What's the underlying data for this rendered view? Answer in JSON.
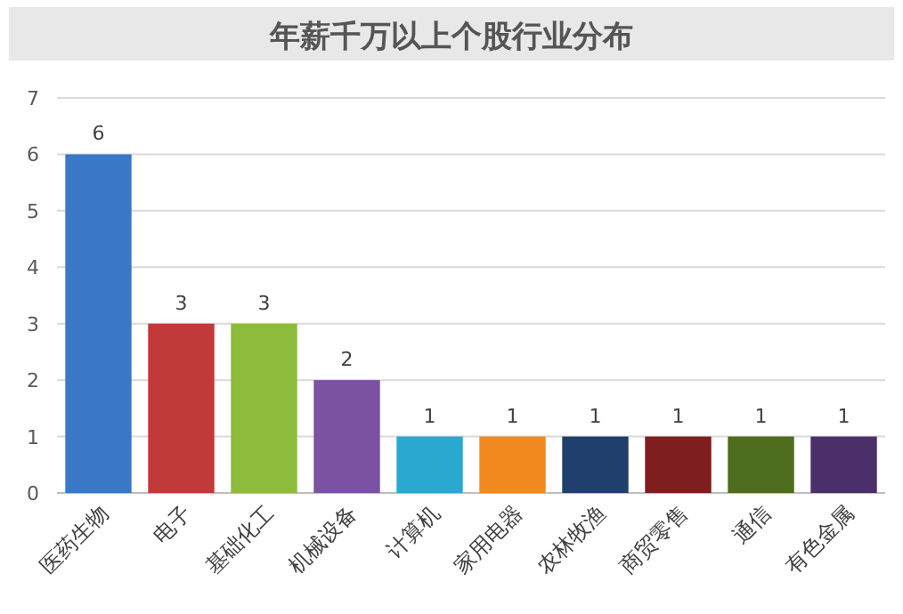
{
  "chart_data": {
    "type": "bar",
    "title": "年薪千万以上个股行业分布",
    "categories": [
      "医药生物",
      "电子",
      "基础化工",
      "机械设备",
      "计算机",
      "家用电器",
      "农林牧渔",
      "商贸零售",
      "通信",
      "有色金属"
    ],
    "values": [
      6,
      3,
      3,
      2,
      1,
      1,
      1,
      1,
      1,
      1
    ],
    "colors": [
      "#3a78c6",
      "#c2393a",
      "#8dbb3b",
      "#7b52a2",
      "#2aa8cf",
      "#f08a1e",
      "#203f6d",
      "#7e1e1f",
      "#4e6d1e",
      "#4a2f6b"
    ],
    "ylim": [
      0,
      7
    ],
    "yticks": [
      0,
      1,
      2,
      3,
      4,
      5,
      6,
      7
    ],
    "grid": "y",
    "data_labels": true
  }
}
